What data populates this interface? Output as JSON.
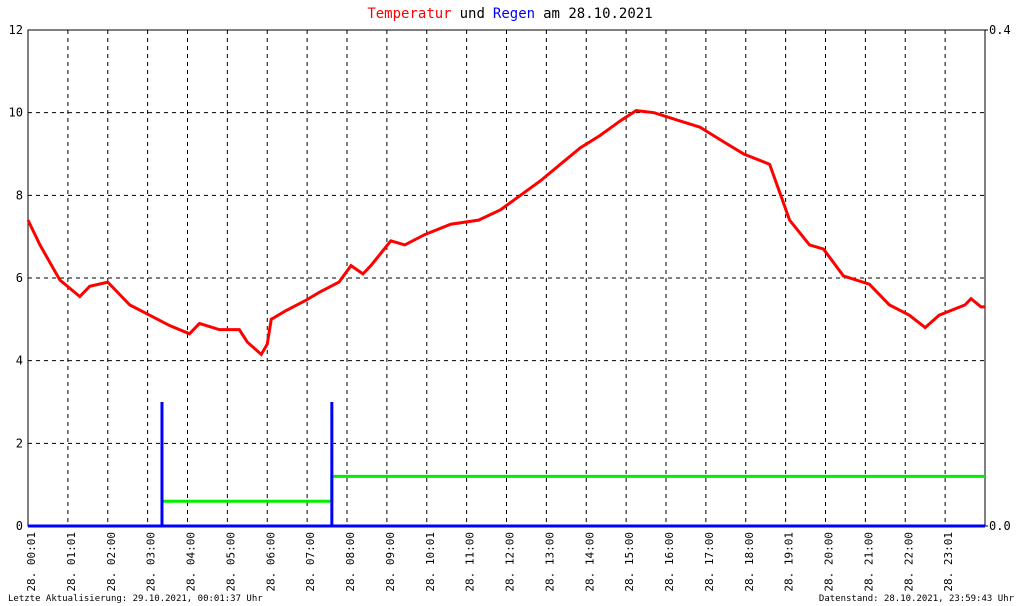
{
  "chart_data": {
    "type": "line",
    "title": {
      "parts": [
        {
          "text": "Temperatur",
          "color": "#ff0000"
        },
        {
          "text": "und",
          "color": "#000000"
        },
        {
          "text": "Regen",
          "color": "#0000ff"
        },
        {
          "text": "am 28.10.2021",
          "color": "#000000"
        }
      ]
    },
    "footer_left": "Letzte Aktualisierung: 29.10.2021, 00:01:37 Uhr",
    "footer_right": "Datenstand: 28.10.2021, 23:59:43 Uhr",
    "xlim": [
      0,
      24
    ],
    "xticks": [
      {
        "value": 0,
        "label": "28. 00:01"
      },
      {
        "value": 1,
        "label": "28. 01:01"
      },
      {
        "value": 2,
        "label": "28. 02:00"
      },
      {
        "value": 3,
        "label": "28. 03:00"
      },
      {
        "value": 4,
        "label": "28. 04:00"
      },
      {
        "value": 5,
        "label": "28. 05:00"
      },
      {
        "value": 6,
        "label": "28. 06:00"
      },
      {
        "value": 7,
        "label": "28. 07:00"
      },
      {
        "value": 8,
        "label": "28. 08:00"
      },
      {
        "value": 9,
        "label": "28. 09:00"
      },
      {
        "value": 10,
        "label": "28. 10:01"
      },
      {
        "value": 11,
        "label": "28. 11:00"
      },
      {
        "value": 12,
        "label": "28. 12:00"
      },
      {
        "value": 13,
        "label": "28. 13:00"
      },
      {
        "value": 14,
        "label": "28. 14:00"
      },
      {
        "value": 15,
        "label": "28. 15:00"
      },
      {
        "value": 16,
        "label": "28. 16:00"
      },
      {
        "value": 17,
        "label": "28. 17:00"
      },
      {
        "value": 18,
        "label": "28. 18:00"
      },
      {
        "value": 19,
        "label": "28. 19:01"
      },
      {
        "value": 20,
        "label": "28. 20:00"
      },
      {
        "value": 21,
        "label": "28. 21:00"
      },
      {
        "value": 22,
        "label": "28. 22:00"
      },
      {
        "value": 23,
        "label": "28. 23:01"
      }
    ],
    "ylim": [
      0,
      12
    ],
    "yticks": [
      0,
      2,
      4,
      6,
      8,
      10,
      12
    ],
    "y2lim": [
      0,
      0.4
    ],
    "y2ticks": [
      {
        "value": 0,
        "label": "0.0"
      },
      0.4
    ],
    "grid": true,
    "temperature": {
      "color": "#ff0000",
      "x": [
        0,
        0.3,
        0.8,
        1.3,
        1.55,
        2.0,
        2.55,
        3.05,
        3.55,
        4.05,
        4.3,
        4.8,
        5.3,
        5.5,
        5.85,
        6.0,
        6.1,
        6.45,
        6.95,
        7.3,
        7.8,
        8.1,
        8.4,
        8.6,
        9.1,
        9.45,
        9.95,
        10.6,
        11.3,
        11.85,
        12.35,
        12.85,
        13.35,
        13.85,
        14.35,
        14.85,
        15.25,
        15.7,
        16.35,
        16.85,
        17.35,
        17.95,
        18.6,
        19.1,
        19.6,
        19.95,
        20.45,
        21.1,
        21.6,
        22.1,
        22.5,
        22.85,
        23.5,
        23.65,
        23.9,
        24.0
      ],
      "values": [
        7.4,
        6.8,
        5.95,
        5.55,
        5.8,
        5.9,
        5.35,
        5.1,
        4.85,
        4.65,
        4.9,
        4.75,
        4.75,
        4.45,
        4.15,
        4.4,
        5.0,
        5.2,
        5.45,
        5.65,
        5.9,
        6.3,
        6.1,
        6.3,
        6.9,
        6.8,
        7.05,
        7.3,
        7.4,
        7.65,
        8.0,
        8.35,
        8.75,
        9.15,
        9.45,
        9.8,
        10.05,
        10.0,
        9.8,
        9.65,
        9.35,
        9.0,
        8.75,
        7.4,
        6.8,
        6.7,
        6.05,
        5.85,
        5.35,
        5.1,
        4.8,
        5.1,
        5.35,
        5.5,
        5.3,
        5.3
      ]
    },
    "rain": {
      "color": "#0000ff",
      "axis": "y2",
      "x": [
        3.36,
        7.62
      ],
      "values": [
        0.1,
        0.1
      ]
    },
    "rain_total": {
      "color": "#00ee00",
      "axis": "y2",
      "x": [
        3.36,
        7.62,
        7.62,
        24
      ],
      "values": [
        0.02,
        0.02,
        0.04,
        0.04
      ]
    }
  }
}
